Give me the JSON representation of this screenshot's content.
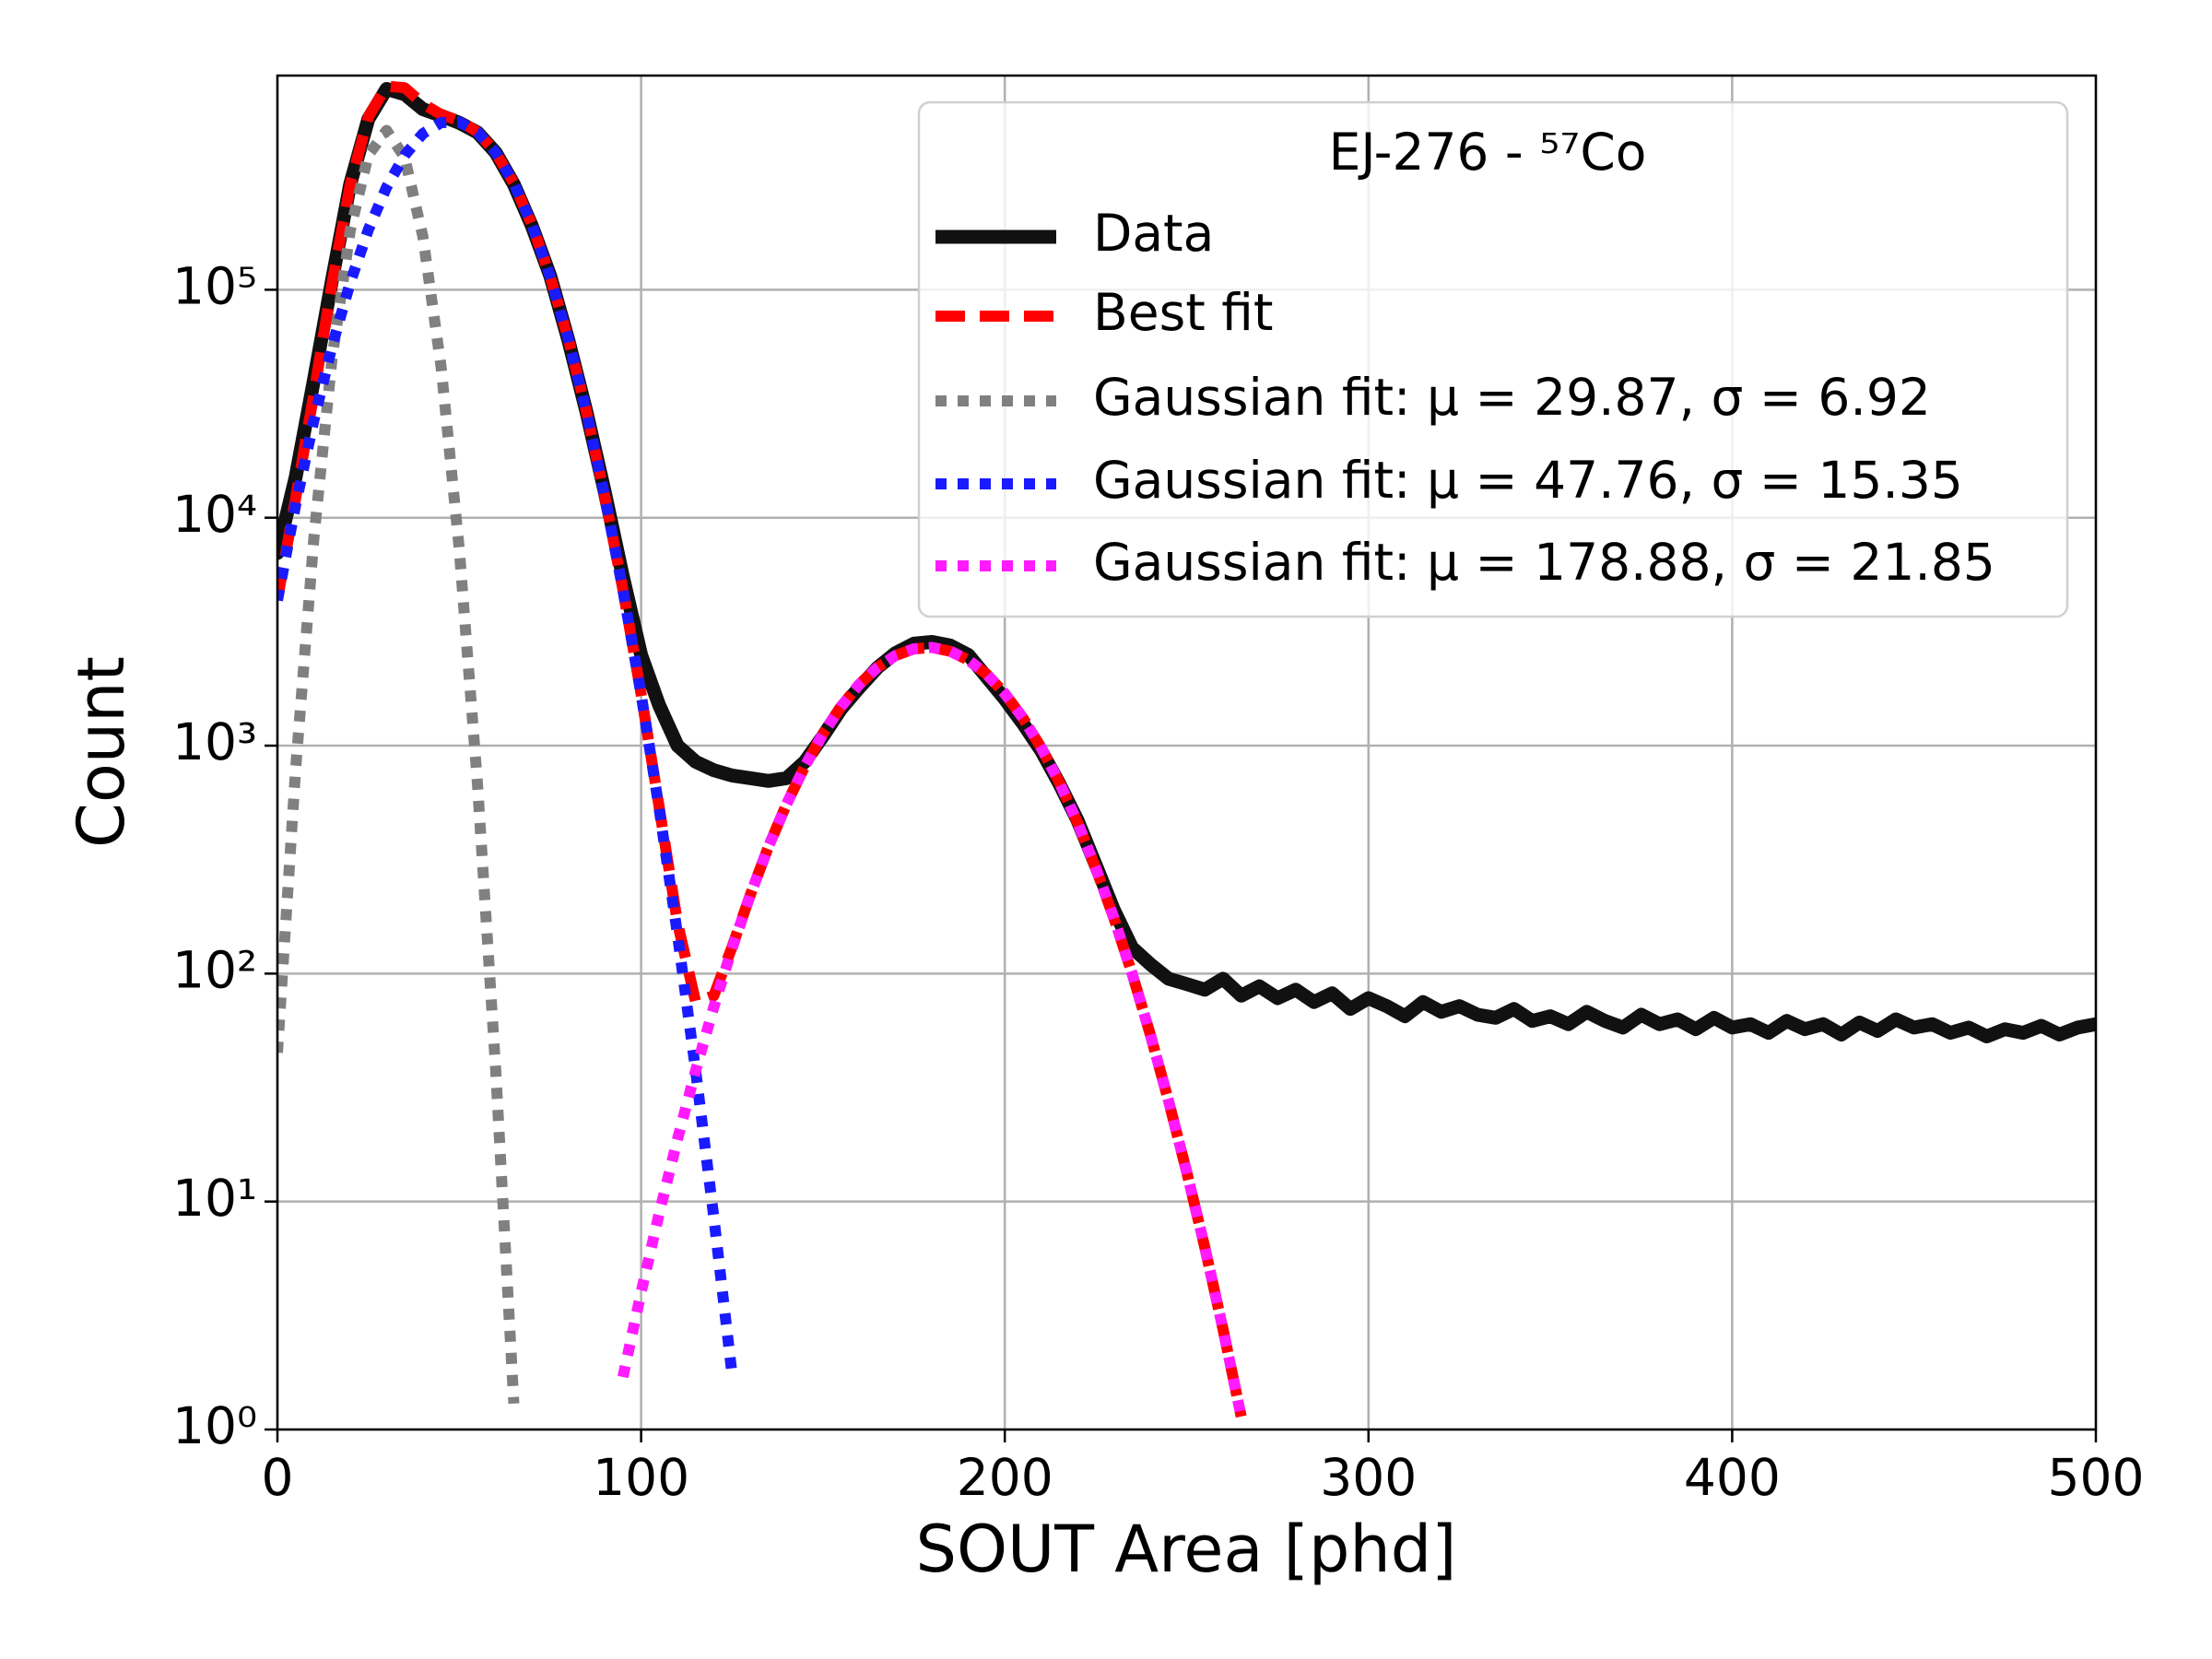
{
  "chart_data": {
    "type": "line",
    "xlabel": "SOUT Area [phd]",
    "ylabel": "Count",
    "xlim": [
      0,
      500
    ],
    "xticks": [
      0,
      100,
      200,
      300,
      400,
      500
    ],
    "ylim": [
      1,
      870000
    ],
    "yscale": "log",
    "yticks": [
      {
        "value": 1,
        "label": "10⁰"
      },
      {
        "value": 10,
        "label": "10¹"
      },
      {
        "value": 100,
        "label": "10²"
      },
      {
        "value": 1000,
        "label": "10³"
      },
      {
        "value": 10000,
        "label": "10⁴"
      },
      {
        "value": 100000,
        "label": "10⁵"
      }
    ],
    "grid": true,
    "legend": {
      "title": "EJ-276 - ⁵⁷Co",
      "loc": "upper right"
    },
    "series": [
      {
        "name": "Data",
        "color": "#111111",
        "linestyle": "solid",
        "x": [
          0,
          5,
          10,
          15,
          20,
          25,
          30,
          35,
          40,
          45,
          50,
          55,
          60,
          65,
          70,
          75,
          80,
          85,
          90,
          95,
          100,
          105,
          110,
          115,
          120,
          125,
          130,
          135,
          140,
          145,
          150,
          155,
          160,
          165,
          170,
          175,
          180,
          185,
          190,
          195,
          200,
          205,
          210,
          215,
          220,
          225,
          230,
          235,
          240,
          245,
          250,
          255,
          260,
          265,
          270,
          275,
          280,
          285,
          290,
          295,
          300,
          305,
          310,
          315,
          320,
          325,
          330,
          335,
          340,
          345,
          350,
          355,
          360,
          365,
          370,
          375,
          380,
          385,
          390,
          395,
          400,
          405,
          410,
          415,
          420,
          425,
          430,
          435,
          440,
          445,
          450,
          455,
          460,
          465,
          470,
          475,
          480,
          485,
          490,
          495,
          500
        ],
        "values": [
          7000,
          15000,
          40000,
          110000,
          290000,
          560000,
          760000,
          720000,
          620000,
          580000,
          540000,
          490000,
          400000,
          290000,
          190000,
          115000,
          60000,
          29000,
          13000,
          5500,
          2500,
          1500,
          1000,
          850,
          780,
          740,
          720,
          700,
          720,
          850,
          1100,
          1450,
          1800,
          2200,
          2550,
          2800,
          2850,
          2750,
          2500,
          2000,
          1600,
          1250,
          950,
          680,
          470,
          300,
          190,
          130,
          110,
          95,
          90,
          85,
          95,
          80,
          88,
          78,
          85,
          75,
          82,
          70,
          78,
          72,
          65,
          75,
          68,
          72,
          66,
          64,
          70,
          62,
          65,
          60,
          68,
          62,
          58,
          66,
          60,
          63,
          57,
          64,
          58,
          60,
          55,
          62,
          57,
          60,
          54,
          61,
          56,
          63,
          58,
          60,
          55,
          58,
          53,
          57,
          55,
          59,
          54,
          58,
          60
        ]
      },
      {
        "name": "Best fit",
        "color": "#ff0000",
        "linestyle": "dashed",
        "x": [
          0,
          5,
          10,
          15,
          20,
          25,
          30,
          35,
          40,
          45,
          50,
          55,
          60,
          65,
          70,
          75,
          80,
          85,
          90,
          95,
          100,
          105,
          110,
          115,
          120,
          125,
          130,
          135,
          140,
          145,
          150,
          155,
          160,
          165,
          170,
          175,
          180,
          185,
          190,
          195,
          200,
          205,
          210,
          215,
          220,
          225,
          230,
          235,
          240,
          245,
          250,
          255,
          260,
          265
        ],
        "values": [
          4385,
          12140,
          34800,
          106100,
          288000,
          573200,
          781600,
          769300,
          655000,
          586900,
          551500,
          492800,
          400200,
          292700,
          192500,
          113900,
          60560,
          28970,
          12460,
          4822,
          1684,
          534,
          167,
          75,
          80,
          131,
          221,
          360,
          554,
          812,
          1127,
          1486,
          1859,
          2207,
          2486,
          2658,
          2697,
          2596,
          2372,
          2057,
          1692,
          1321,
          979,
          689,
          460,
          291,
          175,
          100,
          54.1,
          27.7,
          13.5,
          6.3,
          2.75,
          1.14
        ]
      },
      {
        "name": "Gaussian fit: μ = 29.87, σ = 6.92",
        "color": "#808080",
        "linestyle": "dotted",
        "x": [
          0,
          5,
          10,
          15,
          20,
          25,
          30,
          35,
          40,
          45,
          50,
          55,
          60,
          65
        ],
        "values": [
          45,
          784,
          8100,
          49700,
          180800,
          390000,
          500000,
          380000,
          171000,
          45800,
          7270,
          685,
          38,
          1.3
        ]
      },
      {
        "name": "Gaussian fit: μ = 47.76, σ = 15.35",
        "color": "#1a1aff",
        "linestyle": "dotted",
        "x": [
          0,
          5,
          10,
          15,
          20,
          25,
          30,
          35,
          40,
          45,
          50,
          55,
          60,
          65,
          70,
          75,
          80,
          85,
          90,
          95,
          100,
          105,
          110,
          115,
          120,
          125
        ],
        "values": [
          4340,
          11360,
          26700,
          56400,
          107200,
          183200,
          281600,
          389300,
          484000,
          541100,
          544200,
          492100,
          400200,
          292700,
          192500,
          113900,
          60560,
          28970,
          12460,
          4820,
          1680,
          525,
          148,
          37.4,
          8.5,
          1.74
        ]
      },
      {
        "name": "Gaussian fit: μ = 178.88, σ = 21.85",
        "color": "#ff1aff",
        "linestyle": "dotted",
        "x": [
          95,
          100,
          105,
          110,
          115,
          120,
          125,
          130,
          135,
          140,
          145,
          150,
          155,
          160,
          165,
          170,
          175,
          180,
          185,
          190,
          195,
          200,
          205,
          210,
          215,
          220,
          225,
          230,
          235,
          240,
          245,
          250,
          255,
          260,
          265
        ],
        "values": [
          1.7,
          4.0,
          8.9,
          18.8,
          37.6,
          71.5,
          129,
          221,
          360,
          554,
          812,
          1127,
          1486,
          1859,
          2207,
          2486,
          2658,
          2697,
          2596,
          2372,
          2057,
          1692,
          1321,
          979,
          689,
          460,
          291,
          175,
          100,
          54.1,
          27.7,
          13.5,
          6.3,
          2.75,
          1.14
        ]
      }
    ]
  }
}
